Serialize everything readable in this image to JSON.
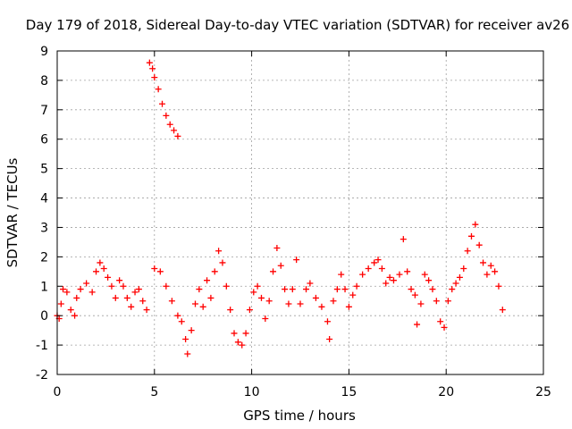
{
  "chart_data": {
    "type": "scatter",
    "title": "Day 179 of 2018, Sidereal Day-to-day VTEC variation (SDTVAR) for receiver av26",
    "xlabel": "GPS time / hours",
    "ylabel": "SDTVAR / TECUs",
    "xlim": [
      0,
      25
    ],
    "ylim": [
      -2,
      9
    ],
    "xticks": [
      "0",
      "5",
      "10",
      "15",
      "20",
      "25"
    ],
    "yticks": [
      "-2",
      "-1",
      "0",
      "1",
      "2",
      "3",
      "4",
      "5",
      "6",
      "7",
      "8",
      "9"
    ],
    "grid": true,
    "marker": "+",
    "color": "#ff0000",
    "series": [
      {
        "name": "SDTVAR",
        "points": [
          [
            0.0,
            0.0
          ],
          [
            0.1,
            -0.1
          ],
          [
            0.2,
            0.4
          ],
          [
            0.3,
            0.9
          ],
          [
            0.5,
            0.8
          ],
          [
            0.7,
            0.2
          ],
          [
            0.9,
            0.0
          ],
          [
            1.0,
            0.6
          ],
          [
            1.2,
            0.9
          ],
          [
            1.5,
            1.1
          ],
          [
            1.8,
            0.8
          ],
          [
            2.0,
            1.5
          ],
          [
            2.2,
            1.8
          ],
          [
            2.4,
            1.6
          ],
          [
            2.6,
            1.3
          ],
          [
            2.8,
            1.0
          ],
          [
            3.0,
            0.6
          ],
          [
            3.2,
            1.2
          ],
          [
            3.4,
            1.0
          ],
          [
            3.6,
            0.6
          ],
          [
            3.8,
            0.3
          ],
          [
            4.0,
            0.8
          ],
          [
            4.2,
            0.9
          ],
          [
            4.4,
            0.5
          ],
          [
            4.6,
            0.2
          ],
          [
            4.75,
            8.6
          ],
          [
            4.9,
            8.4
          ],
          [
            5.0,
            8.1
          ],
          [
            5.2,
            7.7
          ],
          [
            5.4,
            7.2
          ],
          [
            5.6,
            6.8
          ],
          [
            5.8,
            6.5
          ],
          [
            6.0,
            6.3
          ],
          [
            6.2,
            6.1
          ],
          [
            5.0,
            1.6
          ],
          [
            5.3,
            1.5
          ],
          [
            5.6,
            1.0
          ],
          [
            5.9,
            0.5
          ],
          [
            6.2,
            0.0
          ],
          [
            6.4,
            -0.2
          ],
          [
            6.6,
            -0.8
          ],
          [
            6.7,
            -1.3
          ],
          [
            6.9,
            -0.5
          ],
          [
            7.1,
            0.4
          ],
          [
            7.3,
            0.9
          ],
          [
            7.5,
            0.3
          ],
          [
            7.7,
            1.2
          ],
          [
            7.9,
            0.6
          ],
          [
            8.1,
            1.5
          ],
          [
            8.3,
            2.2
          ],
          [
            8.5,
            1.8
          ],
          [
            8.7,
            1.0
          ],
          [
            8.9,
            0.2
          ],
          [
            9.1,
            -0.6
          ],
          [
            9.3,
            -0.9
          ],
          [
            9.5,
            -1.0
          ],
          [
            9.7,
            -0.6
          ],
          [
            9.9,
            0.2
          ],
          [
            10.1,
            0.8
          ],
          [
            10.3,
            1.0
          ],
          [
            10.5,
            0.6
          ],
          [
            10.7,
            -0.1
          ],
          [
            10.9,
            0.5
          ],
          [
            11.1,
            1.5
          ],
          [
            11.3,
            2.3
          ],
          [
            11.5,
            1.7
          ],
          [
            11.7,
            0.9
          ],
          [
            11.9,
            0.4
          ],
          [
            12.1,
            0.9
          ],
          [
            12.3,
            1.9
          ],
          [
            12.5,
            0.4
          ],
          [
            12.8,
            0.9
          ],
          [
            13.0,
            1.1
          ],
          [
            13.3,
            0.6
          ],
          [
            13.6,
            0.3
          ],
          [
            13.9,
            -0.2
          ],
          [
            14.0,
            -0.8
          ],
          [
            14.2,
            0.5
          ],
          [
            14.4,
            0.9
          ],
          [
            14.6,
            1.4
          ],
          [
            14.8,
            0.9
          ],
          [
            15.0,
            0.3
          ],
          [
            15.2,
            0.7
          ],
          [
            15.4,
            1.0
          ],
          [
            15.7,
            1.4
          ],
          [
            16.0,
            1.6
          ],
          [
            16.3,
            1.8
          ],
          [
            16.5,
            1.9
          ],
          [
            16.7,
            1.6
          ],
          [
            16.9,
            1.1
          ],
          [
            17.1,
            1.3
          ],
          [
            17.3,
            1.2
          ],
          [
            17.6,
            1.4
          ],
          [
            17.8,
            2.6
          ],
          [
            18.0,
            1.5
          ],
          [
            18.2,
            0.9
          ],
          [
            18.4,
            0.7
          ],
          [
            18.5,
            -0.3
          ],
          [
            18.7,
            0.4
          ],
          [
            18.9,
            1.4
          ],
          [
            19.1,
            1.2
          ],
          [
            19.3,
            0.9
          ],
          [
            19.5,
            0.5
          ],
          [
            19.7,
            -0.2
          ],
          [
            19.9,
            -0.4
          ],
          [
            20.1,
            0.5
          ],
          [
            20.3,
            0.9
          ],
          [
            20.5,
            1.1
          ],
          [
            20.7,
            1.3
          ],
          [
            20.9,
            1.6
          ],
          [
            21.1,
            2.2
          ],
          [
            21.3,
            2.7
          ],
          [
            21.5,
            3.1
          ],
          [
            21.7,
            2.4
          ],
          [
            21.9,
            1.8
          ],
          [
            22.1,
            1.4
          ],
          [
            22.3,
            1.7
          ],
          [
            22.5,
            1.5
          ],
          [
            22.7,
            1.0
          ],
          [
            22.9,
            0.2
          ]
        ]
      }
    ]
  }
}
